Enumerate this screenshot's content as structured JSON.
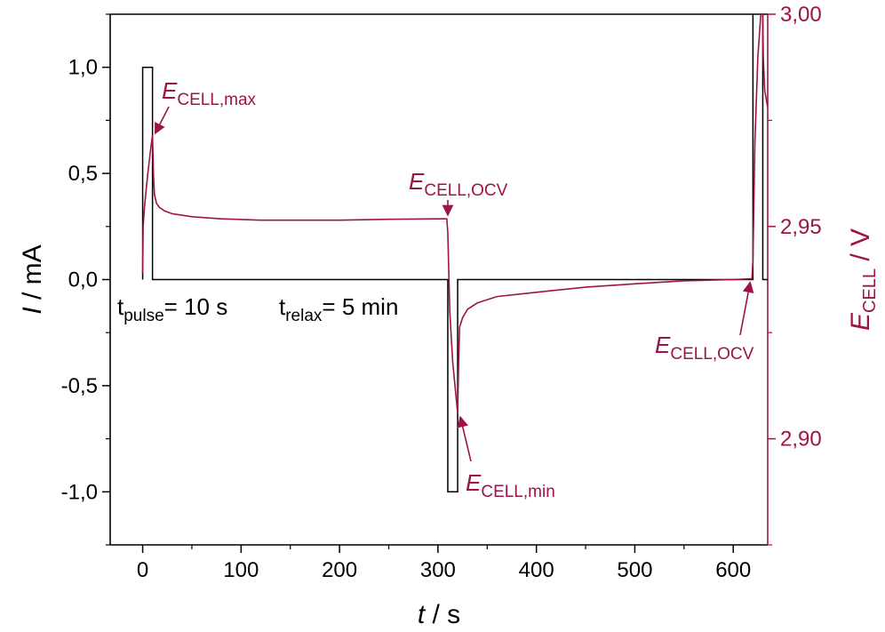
{
  "chart_data": {
    "type": "line",
    "colors": {
      "current": "#000000",
      "potential": "#9e1349"
    },
    "xaxis": {
      "title_italic": "t",
      "title_rest": " / s",
      "range": [
        -33,
        635
      ],
      "ticks": [
        0,
        100,
        200,
        300,
        400,
        500,
        600
      ],
      "tick_labels": [
        "0",
        "100",
        "200",
        "300",
        "400",
        "500",
        "600"
      ]
    },
    "yaxis_left": {
      "title_italic": "I",
      "title_rest": " / mA",
      "range": [
        -1.25,
        1.25
      ],
      "ticks": [
        -1.0,
        -0.5,
        0.0,
        0.5,
        1.0
      ],
      "tick_labels": [
        "-1,0",
        "-0,5",
        "0,0",
        "0,5",
        "1,0"
      ]
    },
    "yaxis_right": {
      "title_italic": "E",
      "title_sub": "CELL",
      "title_rest": " / V",
      "range": [
        2.875,
        3.0
      ],
      "ticks": [
        2.9,
        2.95,
        3.0
      ],
      "tick_labels": [
        "2,90",
        "2,95",
        "3,00"
      ]
    },
    "series": [
      {
        "axis": "left",
        "points": [
          [
            0,
            0
          ],
          [
            0,
            1.0
          ],
          [
            10,
            1.0
          ],
          [
            10,
            0
          ],
          [
            310,
            0
          ],
          [
            310,
            -1.0
          ],
          [
            320,
            -1.0
          ],
          [
            320,
            0
          ],
          [
            620,
            0
          ],
          [
            620,
            1.3
          ],
          [
            630,
            1.3
          ],
          [
            630,
            0
          ],
          [
            635,
            0
          ]
        ]
      },
      {
        "axis": "right",
        "points": [
          [
            0,
            2.939
          ],
          [
            0.5,
            2.95
          ],
          [
            2,
            2.955
          ],
          [
            5,
            2.962
          ],
          [
            8,
            2.968
          ],
          [
            10,
            2.9715
          ],
          [
            11,
            2.962
          ],
          [
            12,
            2.9575
          ],
          [
            14,
            2.9555
          ],
          [
            17,
            2.9545
          ],
          [
            22,
            2.9537
          ],
          [
            30,
            2.953
          ],
          [
            50,
            2.9523
          ],
          [
            80,
            2.9518
          ],
          [
            120,
            2.9515
          ],
          [
            160,
            2.9515
          ],
          [
            200,
            2.9515
          ],
          [
            250,
            2.9517
          ],
          [
            300,
            2.9518
          ],
          [
            309,
            2.9518
          ],
          [
            310,
            2.9485
          ],
          [
            312,
            2.93
          ],
          [
            315,
            2.918
          ],
          [
            320,
            2.906
          ],
          [
            321,
            2.918
          ],
          [
            322,
            2.9263
          ],
          [
            325,
            2.9285
          ],
          [
            330,
            2.9305
          ],
          [
            340,
            2.932
          ],
          [
            360,
            2.9335
          ],
          [
            400,
            2.9345
          ],
          [
            450,
            2.9357
          ],
          [
            500,
            2.9365
          ],
          [
            550,
            2.9372
          ],
          [
            600,
            2.9375
          ],
          [
            619,
            2.9377
          ],
          [
            620,
            2.942
          ],
          [
            622,
            2.97
          ],
          [
            625,
            2.99
          ],
          [
            628,
            3.0
          ],
          [
            630,
            3.0
          ],
          [
            630.5,
            2.99
          ],
          [
            632,
            2.982
          ],
          [
            635,
            2.978
          ]
        ]
      }
    ],
    "annotations": {
      "emax": {
        "main": "E",
        "sub": "CELL,max",
        "x": 10,
        "y": 2.9715
      },
      "eocv1": {
        "main": "E",
        "sub": "CELL,OCV",
        "x": 310,
        "y": 2.9518
      },
      "emin": {
        "main": "E",
        "sub": "CELL,min",
        "x": 320,
        "y": 2.906
      },
      "eocv2": {
        "main": "E",
        "sub": "CELL,OCV",
        "x": 619,
        "y": 2.9377
      },
      "tpulse": {
        "main": "t",
        "sub": "pulse",
        "rest": "= 10 s"
      },
      "trelax": {
        "main": "t",
        "sub": "relax",
        "rest": "= 5 min"
      }
    }
  }
}
